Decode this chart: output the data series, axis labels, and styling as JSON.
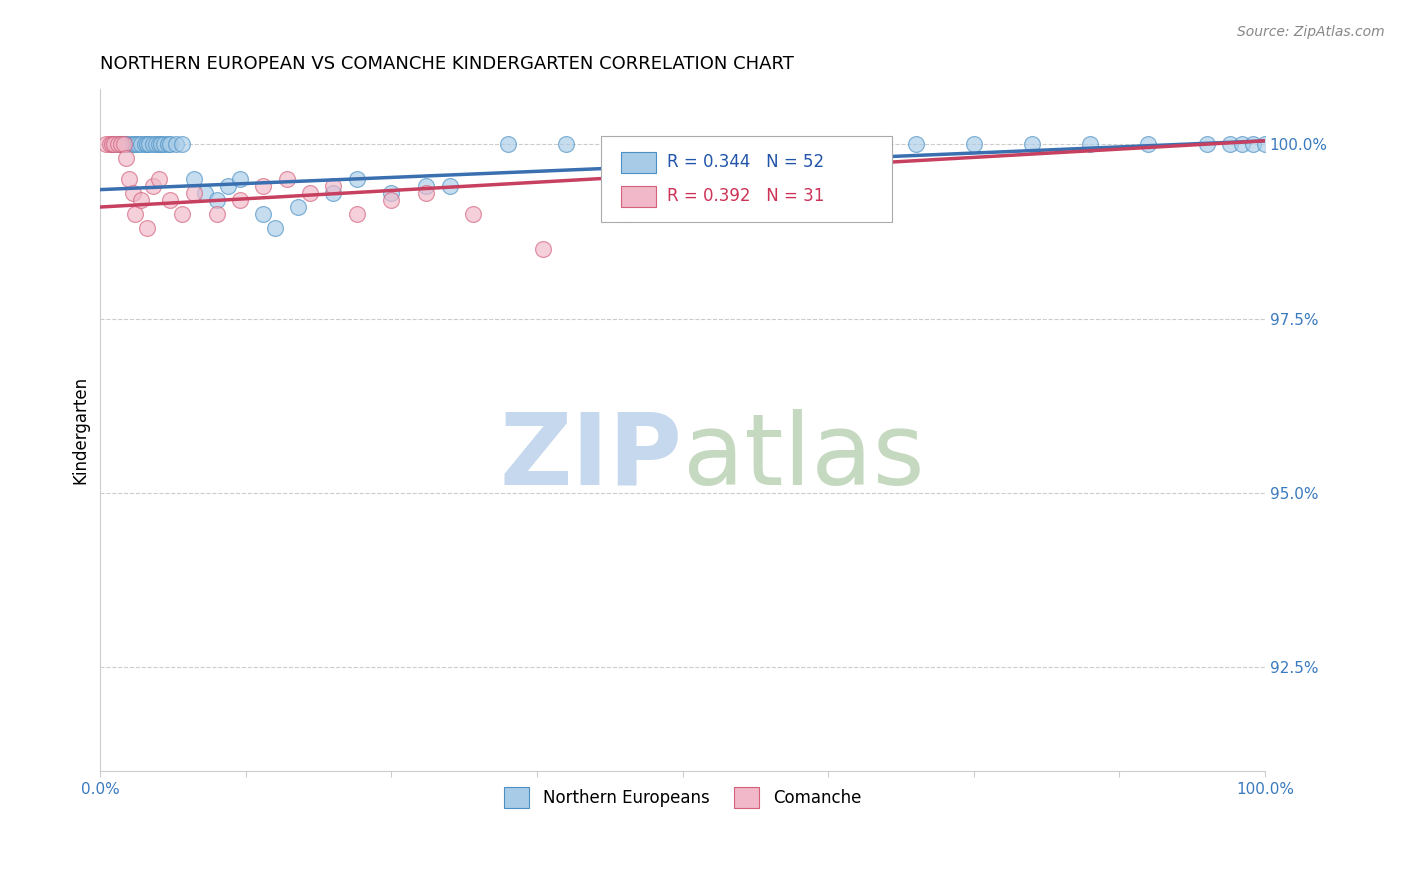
{
  "title": "NORTHERN EUROPEAN VS COMANCHE KINDERGARTEN CORRELATION CHART",
  "source": "Source: ZipAtlas.com",
  "ylabel": "Kindergarten",
  "right_yticks": [
    100.0,
    97.5,
    95.0,
    92.5
  ],
  "right_ytick_labels": [
    "100.0%",
    "97.5%",
    "95.0%",
    "92.5%"
  ],
  "legend_label_ne": "Northern Europeans",
  "legend_label_co": "Comanche",
  "blue_color": "#a8cce8",
  "pink_color": "#f0b8c8",
  "blue_edge_color": "#4a90c4",
  "pink_edge_color": "#d4607a",
  "blue_line_color": "#3a6fb0",
  "pink_line_color": "#c84060",
  "watermark_zip_color": "#c5d8ee",
  "watermark_atlas_color": "#c5d8c0",
  "blue_x": [
    0.01,
    0.015,
    0.018,
    0.02,
    0.022,
    0.025,
    0.028,
    0.03,
    0.032,
    0.035,
    0.038,
    0.04,
    0.042,
    0.045,
    0.048,
    0.05,
    0.052,
    0.055,
    0.058,
    0.06,
    0.065,
    0.07,
    0.08,
    0.09,
    0.1,
    0.11,
    0.12,
    0.14,
    0.15,
    0.17,
    0.2,
    0.22,
    0.25,
    0.28,
    0.3,
    0.35,
    0.4,
    0.45,
    0.5,
    0.55,
    0.6,
    0.65,
    0.7,
    0.75,
    0.8,
    0.85,
    0.9,
    0.95,
    0.97,
    0.98,
    0.99,
    1.0
  ],
  "blue_y": [
    100.0,
    100.0,
    100.0,
    100.0,
    100.0,
    100.0,
    100.0,
    100.0,
    100.0,
    100.0,
    100.0,
    100.0,
    100.0,
    100.0,
    100.0,
    100.0,
    100.0,
    100.0,
    100.0,
    100.0,
    100.0,
    100.0,
    99.5,
    99.3,
    99.2,
    99.4,
    99.5,
    99.0,
    98.8,
    99.1,
    99.3,
    99.5,
    99.3,
    99.4,
    99.4,
    100.0,
    100.0,
    100.0,
    100.0,
    100.0,
    100.0,
    100.0,
    100.0,
    100.0,
    100.0,
    100.0,
    100.0,
    100.0,
    100.0,
    100.0,
    100.0,
    100.0
  ],
  "pink_x": [
    0.005,
    0.008,
    0.01,
    0.012,
    0.015,
    0.018,
    0.02,
    0.022,
    0.025,
    0.028,
    0.03,
    0.035,
    0.04,
    0.045,
    0.05,
    0.06,
    0.07,
    0.08,
    0.1,
    0.12,
    0.14,
    0.16,
    0.18,
    0.2,
    0.22,
    0.25,
    0.28,
    0.32,
    0.38,
    0.45,
    0.5
  ],
  "pink_y": [
    100.0,
    100.0,
    100.0,
    100.0,
    100.0,
    100.0,
    100.0,
    99.8,
    99.5,
    99.3,
    99.0,
    99.2,
    98.8,
    99.4,
    99.5,
    99.2,
    99.0,
    99.3,
    99.0,
    99.2,
    99.4,
    99.5,
    99.3,
    99.4,
    99.0,
    99.2,
    99.3,
    99.0,
    98.5,
    99.0,
    99.5
  ],
  "xmin": 0.0,
  "xmax": 1.0,
  "ymin": 91.0,
  "ymax": 100.8,
  "blue_trend_x0": 0.0,
  "blue_trend_y0": 99.35,
  "blue_trend_x1": 1.0,
  "blue_trend_y1": 100.05,
  "pink_trend_x0": 0.0,
  "pink_trend_y0": 99.1,
  "pink_trend_x1": 1.0,
  "pink_trend_y1": 100.05,
  "figsize": [
    14.06,
    8.92
  ],
  "dpi": 100
}
